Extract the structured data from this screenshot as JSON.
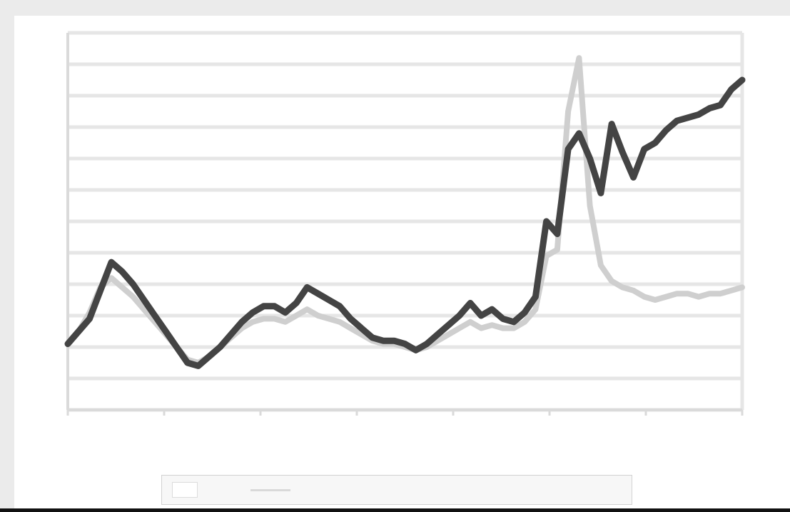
{
  "chart_data": {
    "type": "line",
    "title": "",
    "xlabel": "",
    "ylabel": "",
    "x_tick_labels": [
      "",
      "",
      "",
      "",
      "",
      "",
      "",
      ""
    ],
    "y_tick_labels": [
      "",
      "",
      "",
      "",
      "",
      "",
      "",
      "",
      "",
      "",
      "",
      "",
      ""
    ],
    "ylim": [
      0,
      12
    ],
    "grid": true,
    "legend_position": "bottom-center",
    "series": [
      {
        "name": "",
        "color": "#444444",
        "values": [
          2.1,
          2.5,
          2.9,
          3.8,
          4.7,
          4.4,
          4.0,
          3.5,
          3.0,
          2.5,
          2.0,
          1.5,
          1.4,
          1.7,
          2.0,
          2.4,
          2.8,
          3.1,
          3.3,
          3.3,
          3.1,
          3.4,
          3.9,
          3.7,
          3.5,
          3.3,
          2.9,
          2.6,
          2.3,
          2.2,
          2.2,
          2.1,
          1.9,
          2.1,
          2.4,
          2.7,
          3.0,
          3.4,
          3.0,
          3.2,
          2.9,
          2.8,
          3.1,
          3.6,
          6.0,
          5.6,
          8.3,
          8.8,
          8.0,
          6.9,
          9.1,
          8.2,
          7.4,
          8.3,
          8.5,
          8.9,
          9.2,
          9.3,
          9.4,
          9.6,
          9.7,
          10.2,
          10.5
        ]
      },
      {
        "name": "",
        "color": "#cfcfcf",
        "values": [
          2.1,
          2.5,
          3.1,
          3.9,
          4.2,
          3.9,
          3.6,
          3.2,
          2.8,
          2.4,
          2.0,
          1.6,
          1.5,
          1.7,
          2.0,
          2.3,
          2.6,
          2.8,
          2.9,
          2.9,
          2.8,
          3.0,
          3.2,
          3.0,
          2.9,
          2.8,
          2.6,
          2.4,
          2.2,
          2.1,
          2.1,
          2.0,
          1.9,
          2.0,
          2.2,
          2.4,
          2.6,
          2.8,
          2.6,
          2.7,
          2.6,
          2.6,
          2.8,
          3.2,
          4.9,
          5.1,
          9.5,
          11.2,
          6.5,
          4.6,
          4.1,
          3.9,
          3.8,
          3.6,
          3.5,
          3.6,
          3.7,
          3.7,
          3.6,
          3.7,
          3.7,
          3.8,
          3.9
        ]
      }
    ]
  },
  "legend": {
    "items": [
      {
        "label": ""
      },
      {
        "label": ""
      }
    ]
  }
}
